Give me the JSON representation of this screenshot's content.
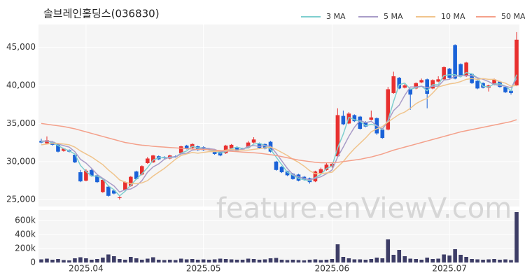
{
  "chart_data": {
    "type": "candlestick",
    "title": "솔브레인홀딩스(036830)",
    "watermark": "feature.enViewV.com",
    "categories": [
      null,
      null,
      null,
      null,
      null,
      null,
      null,
      null,
      "2025.04",
      null,
      null,
      null,
      null,
      null,
      null,
      null,
      null,
      null,
      null,
      null,
      null,
      null,
      null,
      null,
      null,
      null,
      null,
      null,
      null,
      "2025.05",
      null,
      null,
      null,
      null,
      null,
      null,
      null,
      null,
      null,
      null,
      null,
      null,
      null,
      null,
      null,
      null,
      null,
      null,
      null,
      null,
      null,
      null,
      "2025.06",
      null,
      null,
      null,
      null,
      null,
      null,
      null,
      null,
      null,
      null,
      null,
      null,
      null,
      null,
      null,
      null,
      null,
      null,
      null,
      null,
      "2025.07",
      null,
      null,
      null,
      null,
      null,
      null,
      null,
      null,
      null,
      null,
      null,
      null
    ],
    "open": [
      32700,
      32400,
      32600,
      32300,
      31400,
      31500,
      30900,
      28600,
      27500,
      28900,
      28200,
      26000,
      26700,
      26200,
      25200,
      26300,
      26800,
      28700,
      28300,
      29800,
      29900,
      30700,
      30600,
      30400,
      30700,
      31100,
      32100,
      31800,
      32000,
      31900,
      31700,
      31500,
      31300,
      31100,
      31700,
      31900,
      31700,
      31800,
      32500,
      32400,
      32300,
      32600,
      30000,
      29300,
      28700,
      28400,
      28300,
      28000,
      27800,
      27400,
      28500,
      28900,
      29300,
      30700,
      36000,
      35000,
      36100,
      35900,
      35200,
      35500,
      35700,
      34200,
      34200,
      39000,
      41000,
      39700,
      39500,
      39600,
      40400,
      40800,
      39600,
      40500,
      40800,
      42200,
      45300,
      42800,
      41200,
      41500,
      40600,
      40300,
      39700,
      40100,
      40500,
      39800,
      39300,
      40000
    ],
    "high": [
      33000,
      33300,
      32700,
      32400,
      31800,
      31600,
      31000,
      28900,
      29000,
      29000,
      28300,
      27800,
      26800,
      26300,
      25500,
      27400,
      28100,
      28800,
      29500,
      30600,
      30900,
      30800,
      30700,
      30900,
      30800,
      32100,
      32200,
      32400,
      32100,
      32000,
      31800,
      31600,
      31400,
      32200,
      32300,
      32000,
      31800,
      32700,
      33200,
      32500,
      32400,
      32700,
      30100,
      29400,
      28800,
      28500,
      28400,
      28100,
      27900,
      28800,
      29200,
      29800,
      29900,
      37000,
      36700,
      36500,
      36200,
      36000,
      35300,
      36700,
      35800,
      34300,
      39800,
      41800,
      41100,
      40200,
      39600,
      40400,
      40900,
      40900,
      40800,
      41200,
      42500,
      42300,
      45400,
      42900,
      43100,
      41600,
      40700,
      40400,
      40100,
      40900,
      40600,
      39900,
      39400,
      47000
    ],
    "low": [
      32400,
      32300,
      32100,
      31200,
      31300,
      31200,
      29800,
      27300,
      27400,
      28000,
      27200,
      25900,
      25400,
      25700,
      25000,
      26200,
      26700,
      27600,
      28200,
      29700,
      29800,
      30200,
      30300,
      30300,
      30500,
      31000,
      31600,
      31700,
      31400,
      31400,
      31500,
      30900,
      30700,
      31000,
      31600,
      31300,
      31500,
      31700,
      32400,
      31700,
      31600,
      31200,
      28800,
      28500,
      28100,
      27600,
      27400,
      27500,
      27100,
      27300,
      28400,
      28800,
      29200,
      30600,
      34800,
      34900,
      35200,
      34200,
      34500,
      35400,
      33500,
      33000,
      34100,
      38900,
      39500,
      39600,
      36800,
      39500,
      40300,
      37000,
      39500,
      40400,
      40700,
      40900,
      40800,
      41200,
      41100,
      40200,
      39500,
      39600,
      39200,
      40000,
      39700,
      39000,
      38800,
      39900
    ],
    "close": [
      32500,
      32800,
      32200,
      31300,
      31700,
      31300,
      29900,
      27400,
      28800,
      28100,
      27300,
      27600,
      25500,
      25800,
      25300,
      27300,
      28000,
      27700,
      29400,
      30400,
      30800,
      30300,
      30500,
      30800,
      30600,
      32000,
      31700,
      32300,
      31500,
      31500,
      31600,
      31000,
      30800,
      32100,
      32200,
      31400,
      31600,
      32500,
      32900,
      31800,
      31700,
      31300,
      28900,
      28600,
      28200,
      27700,
      27500,
      27600,
      27300,
      28700,
      29000,
      29600,
      29700,
      36100,
      34900,
      36300,
      35300,
      34300,
      34600,
      35800,
      33700,
      33100,
      39500,
      41200,
      39600,
      40000,
      38800,
      40300,
      40700,
      38900,
      40700,
      40800,
      42400,
      41000,
      40900,
      41300,
      43000,
      40300,
      39600,
      39700,
      40000,
      40800,
      39800,
      39100,
      39000,
      46000
    ],
    "up_color": "#e8302f",
    "down_color": "#1a62d8",
    "ylim": [
      24100,
      48000
    ],
    "yticks": [
      {
        "value": 25000,
        "label": "25,000"
      },
      {
        "value": 30000,
        "label": "30,000"
      },
      {
        "value": 35000,
        "label": "35,000"
      },
      {
        "value": 40000,
        "label": "40,000"
      },
      {
        "value": 45000,
        "label": "45,000"
      }
    ],
    "grid": true,
    "series": [
      {
        "name": "3 MA",
        "color": "#7ecfcf",
        "values": [
          32600,
          32700,
          32500,
          32100,
          31700,
          31400,
          31000,
          29500,
          28700,
          28100,
          28100,
          27700,
          26800,
          26300,
          25500,
          26100,
          26900,
          27700,
          28400,
          29200,
          30200,
          30500,
          30500,
          30500,
          30600,
          31100,
          31400,
          32000,
          31800,
          31800,
          31500,
          31400,
          31100,
          31300,
          31700,
          31900,
          31700,
          31800,
          32300,
          32400,
          32100,
          31600,
          30600,
          29600,
          28600,
          28200,
          27800,
          27600,
          27500,
          27900,
          28300,
          29100,
          29400,
          31800,
          33600,
          35800,
          35500,
          35300,
          34700,
          34900,
          34700,
          34200,
          35400,
          37900,
          40100,
          40300,
          39500,
          39700,
          39900,
          39300,
          40100,
          40100,
          41300,
          41400,
          41400,
          41100,
          41700,
          41500,
          41000,
          39900,
          39800,
          40200,
          40200,
          39900,
          39300,
          41400
        ]
      },
      {
        "name": "5 MA",
        "color": "#a99cc8",
        "values": [
          32700,
          32700,
          32600,
          32300,
          32100,
          31900,
          31300,
          30300,
          29800,
          29100,
          28300,
          27800,
          27300,
          26800,
          26000,
          26300,
          26400,
          26800,
          27500,
          28600,
          29300,
          29700,
          30300,
          30600,
          30600,
          31000,
          31100,
          31500,
          31600,
          31800,
          31700,
          31600,
          31300,
          31400,
          31500,
          31500,
          31600,
          32000,
          32100,
          32000,
          32100,
          32000,
          31100,
          30100,
          29100,
          28300,
          28000,
          27800,
          27600,
          27800,
          28000,
          28400,
          28900,
          30600,
          31900,
          33300,
          34500,
          35400,
          35100,
          35300,
          34700,
          34300,
          35300,
          36700,
          37400,
          38700,
          39800,
          39800,
          39900,
          39700,
          39900,
          39900,
          40700,
          40800,
          41200,
          41300,
          41300,
          41300,
          41000,
          40800,
          40500,
          40100,
          40000,
          39900,
          39700,
          40900
        ]
      },
      {
        "name": "10 MA",
        "color": "#f0c48c",
        "values": [
          32200,
          32300,
          32400,
          32400,
          32300,
          32200,
          31900,
          31400,
          31000,
          30600,
          30100,
          29600,
          28900,
          28300,
          27600,
          27300,
          27100,
          27100,
          27200,
          27500,
          28100,
          28600,
          29100,
          29700,
          30300,
          30800,
          31000,
          31200,
          31100,
          31200,
          31300,
          31300,
          31400,
          31500,
          31600,
          31500,
          31500,
          31500,
          31600,
          31700,
          31800,
          31900,
          31600,
          31200,
          30800,
          30300,
          29900,
          29400,
          28800,
          28400,
          28400,
          28500,
          28600,
          29300,
          30000,
          30900,
          31700,
          32400,
          33100,
          33900,
          34300,
          34600,
          35200,
          35700,
          36200,
          36500,
          37000,
          37600,
          38000,
          38300,
          39000,
          39800,
          40000,
          40200,
          40300,
          40500,
          40800,
          40900,
          40800,
          40900,
          40800,
          40800,
          40500,
          40300,
          39900,
          40000
        ]
      },
      {
        "name": "50 MA",
        "color": "#f4a08a",
        "values": [
          35000,
          34900,
          34800,
          34700,
          34600,
          34450,
          34300,
          34100,
          33900,
          33700,
          33500,
          33300,
          33100,
          32900,
          32700,
          32500,
          32400,
          32250,
          32150,
          32100,
          32000,
          31950,
          31900,
          31850,
          31800,
          31750,
          31700,
          31650,
          31600,
          31600,
          31550,
          31500,
          31450,
          31400,
          31350,
          31300,
          31250,
          31200,
          31150,
          31100,
          31000,
          30900,
          30800,
          30650,
          30500,
          30350,
          30200,
          30100,
          30000,
          29900,
          29850,
          29850,
          29850,
          29900,
          30000,
          30100,
          30200,
          30300,
          30450,
          30600,
          30800,
          31000,
          31250,
          31500,
          31700,
          31900,
          32100,
          32300,
          32500,
          32700,
          32900,
          33100,
          33300,
          33500,
          33700,
          33900,
          34050,
          34200,
          34350,
          34500,
          34650,
          34800,
          34950,
          35100,
          35250,
          35500
        ]
      }
    ],
    "volume": {
      "color": "#3d3d66",
      "ylim": [
        0,
        750000
      ],
      "yticks": [
        0,
        {
          "value": 200000,
          "label": "200k"
        },
        {
          "value": 400000,
          "label": "400k"
        },
        {
          "value": 600000,
          "label": "600k"
        }
      ],
      "values": [
        45000,
        55000,
        40000,
        50000,
        35000,
        30000,
        60000,
        75000,
        60000,
        40000,
        50000,
        70000,
        115000,
        90000,
        50000,
        40000,
        80000,
        60000,
        40000,
        55000,
        75000,
        40000,
        35000,
        40000,
        35000,
        55000,
        45000,
        50000,
        40000,
        45000,
        40000,
        45000,
        55000,
        50000,
        45000,
        40000,
        40000,
        55000,
        50000,
        40000,
        45000,
        60000,
        65000,
        40000,
        35000,
        40000,
        35000,
        30000,
        40000,
        45000,
        35000,
        40000,
        50000,
        260000,
        80000,
        60000,
        45000,
        45000,
        40000,
        50000,
        70000,
        60000,
        330000,
        110000,
        180000,
        90000,
        55000,
        50000,
        40000,
        70000,
        50000,
        55000,
        115000,
        100000,
        190000,
        110000,
        80000,
        50000,
        45000,
        40000,
        45000,
        50000,
        40000,
        45000,
        35000,
        720000
      ]
    }
  }
}
